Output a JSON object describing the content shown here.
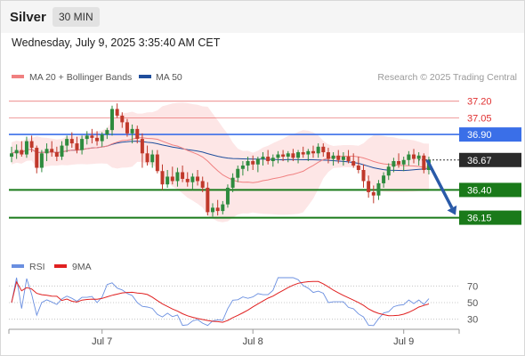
{
  "header": {
    "symbol": "Silver",
    "timeframe": "30 MIN",
    "datetime": "Wednesday, July 9, 2025 3:35:40 AM CET"
  },
  "legend": {
    "ma20_label": "MA 20 + Bollinger Bands",
    "ma50_label": "MA 50",
    "credit": "Research © 2025 Trading Central",
    "ma20_color": "#f08080",
    "ma50_color": "#1f4e9c"
  },
  "rsi_legend": {
    "rsi_label": "RSI",
    "ma9_label": "9MA",
    "rsi_color": "#6a8fe0",
    "ma9_color": "#e02020"
  },
  "chart_data": {
    "type": "candlestick",
    "price_range": [
      35.93,
      37.27
    ],
    "x_labels": [
      "Jul 7",
      "Jul 8",
      "Jul 9"
    ],
    "current_price": "36.67",
    "levels": [
      {
        "value": "37.20",
        "role": "resistance-thin",
        "color": "#e03030"
      },
      {
        "value": "37.05",
        "role": "resistance-thin",
        "color": "#e03030"
      },
      {
        "value": "36.90",
        "role": "pivot",
        "color": "#3a6fe8"
      },
      {
        "value": "36.40",
        "role": "support",
        "color": "#1a7a1a"
      },
      {
        "value": "36.15",
        "role": "target",
        "color": "#1a7a1a"
      }
    ],
    "forecast_arrow": {
      "from": 36.67,
      "to": 36.15,
      "color": "#2a5aa8"
    },
    "candles": [
      [
        36.7,
        36.79,
        36.65,
        36.73
      ],
      [
        36.73,
        36.81,
        36.68,
        36.76
      ],
      [
        36.76,
        36.84,
        36.7,
        36.72
      ],
      [
        36.72,
        36.88,
        36.69,
        36.84
      ],
      [
        36.84,
        36.89,
        36.74,
        36.78
      ],
      [
        36.78,
        36.8,
        36.55,
        36.6
      ],
      [
        36.6,
        36.76,
        36.56,
        36.73
      ],
      [
        36.73,
        36.82,
        36.66,
        36.77
      ],
      [
        36.77,
        36.84,
        36.7,
        36.74
      ],
      [
        36.74,
        36.79,
        36.66,
        36.7
      ],
      [
        36.7,
        36.84,
        36.67,
        36.8
      ],
      [
        36.8,
        36.89,
        36.74,
        36.86
      ],
      [
        36.86,
        36.92,
        36.78,
        36.82
      ],
      [
        36.82,
        36.88,
        36.73,
        36.76
      ],
      [
        36.76,
        36.89,
        36.72,
        36.86
      ],
      [
        36.86,
        36.93,
        36.81,
        36.89
      ],
      [
        36.89,
        36.95,
        36.82,
        36.87
      ],
      [
        36.87,
        36.93,
        36.8,
        36.84
      ],
      [
        36.84,
        36.92,
        36.79,
        36.9
      ],
      [
        36.9,
        36.96,
        36.86,
        36.94
      ],
      [
        36.94,
        37.16,
        36.89,
        37.13
      ],
      [
        37.13,
        37.18,
        37.05,
        37.07
      ],
      [
        37.07,
        37.1,
        36.96,
        37.01
      ],
      [
        37.01,
        37.04,
        36.88,
        36.91
      ],
      [
        36.91,
        36.99,
        36.82,
        36.95
      ],
      [
        36.95,
        36.98,
        36.82,
        36.86
      ],
      [
        36.86,
        36.91,
        36.6,
        36.73
      ],
      [
        36.73,
        36.8,
        36.62,
        36.65
      ],
      [
        36.65,
        36.76,
        36.6,
        36.72
      ],
      [
        36.72,
        36.76,
        36.55,
        36.57
      ],
      [
        36.57,
        36.63,
        36.4,
        36.45
      ],
      [
        36.45,
        36.58,
        36.42,
        36.52
      ],
      [
        36.52,
        36.61,
        36.45,
        36.48
      ],
      [
        36.48,
        36.6,
        36.43,
        36.56
      ],
      [
        36.56,
        36.62,
        36.47,
        36.5
      ],
      [
        36.5,
        36.56,
        36.43,
        36.47
      ],
      [
        36.47,
        36.55,
        36.4,
        36.52
      ],
      [
        36.52,
        36.58,
        36.44,
        36.48
      ],
      [
        36.48,
        36.52,
        36.38,
        36.42
      ],
      [
        36.42,
        36.47,
        36.17,
        36.2
      ],
      [
        36.2,
        36.28,
        36.16,
        36.24
      ],
      [
        36.24,
        36.31,
        36.17,
        36.21
      ],
      [
        36.21,
        36.3,
        36.18,
        36.27
      ],
      [
        36.27,
        36.45,
        36.24,
        36.42
      ],
      [
        36.42,
        36.55,
        36.38,
        36.51
      ],
      [
        36.51,
        36.62,
        36.47,
        36.59
      ],
      [
        36.59,
        36.66,
        36.53,
        36.62
      ],
      [
        36.62,
        36.7,
        36.57,
        36.66
      ],
      [
        36.66,
        36.71,
        36.58,
        36.63
      ],
      [
        36.63,
        36.7,
        36.56,
        36.68
      ],
      [
        36.68,
        36.74,
        36.62,
        36.7
      ],
      [
        36.7,
        36.76,
        36.63,
        36.66
      ],
      [
        36.66,
        36.72,
        36.61,
        36.69
      ],
      [
        36.69,
        36.75,
        36.64,
        36.72
      ],
      [
        36.72,
        36.76,
        36.66,
        36.7
      ],
      [
        36.7,
        36.75,
        36.65,
        36.73
      ],
      [
        36.73,
        36.77,
        36.66,
        36.69
      ],
      [
        36.69,
        36.76,
        36.64,
        36.74
      ],
      [
        36.74,
        36.79,
        36.69,
        36.72
      ],
      [
        36.72,
        36.77,
        36.66,
        36.75
      ],
      [
        36.75,
        36.8,
        36.69,
        36.73
      ],
      [
        36.73,
        36.82,
        36.69,
        36.79
      ],
      [
        36.79,
        36.82,
        36.7,
        36.74
      ],
      [
        36.74,
        36.78,
        36.64,
        36.68
      ],
      [
        36.68,
        36.74,
        36.62,
        36.71
      ],
      [
        36.71,
        36.76,
        36.64,
        36.67
      ],
      [
        36.67,
        36.74,
        36.62,
        36.7
      ],
      [
        36.7,
        36.76,
        36.64,
        36.66
      ],
      [
        36.66,
        36.73,
        36.6,
        36.62
      ],
      [
        36.62,
        36.7,
        36.55,
        36.58
      ],
      [
        36.58,
        36.63,
        36.42,
        36.48
      ],
      [
        36.48,
        36.53,
        36.33,
        36.38
      ],
      [
        36.38,
        36.44,
        36.28,
        36.35
      ],
      [
        36.35,
        36.49,
        36.31,
        36.46
      ],
      [
        36.46,
        36.56,
        36.42,
        36.53
      ],
      [
        36.53,
        36.64,
        36.49,
        36.61
      ],
      [
        36.61,
        36.69,
        36.56,
        36.66
      ],
      [
        36.66,
        36.73,
        36.6,
        36.63
      ],
      [
        36.63,
        36.7,
        36.57,
        36.67
      ],
      [
        36.67,
        36.75,
        36.62,
        36.72
      ],
      [
        36.72,
        36.77,
        36.64,
        36.68
      ],
      [
        36.68,
        36.74,
        36.62,
        36.71
      ],
      [
        36.71,
        36.73,
        36.55,
        36.58
      ],
      [
        36.58,
        36.7,
        36.54,
        36.67
      ]
    ]
  },
  "rsi_data": {
    "range": [
      20,
      80
    ],
    "ticks": [
      "70",
      "50",
      "30"
    ]
  }
}
